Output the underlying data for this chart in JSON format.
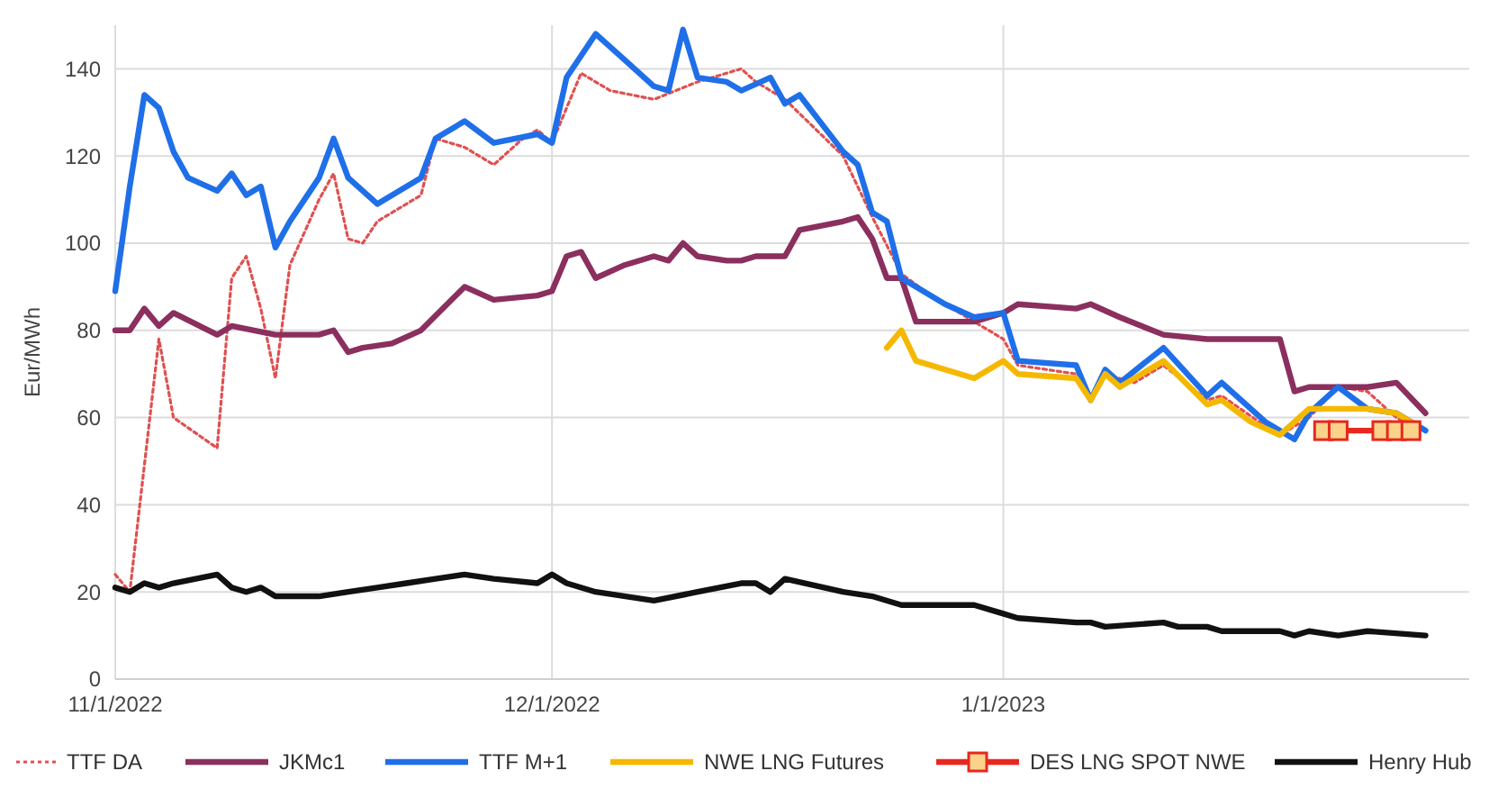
{
  "chart_data": {
    "type": "line",
    "ylabel": "Eur/MWh",
    "ylim": [
      0,
      150
    ],
    "yticks": [
      0,
      20,
      40,
      60,
      80,
      100,
      120,
      140
    ],
    "xlim": [
      "2022-11-01",
      "2023-02-02"
    ],
    "xticks": [
      {
        "value": "2022-11-01",
        "label": "11/1/2022"
      },
      {
        "value": "2022-12-01",
        "label": "12/1/2022"
      },
      {
        "value": "2023-01-01",
        "label": "1/1/2023"
      }
    ],
    "grid": true,
    "legend": "bottom",
    "marker": "none",
    "series": [
      {
        "name": "TTF DA",
        "color": "#e05050",
        "line_style": "dotted",
        "x": [
          "2022-11-01",
          "2022-11-02",
          "2022-11-04",
          "2022-11-05",
          "2022-11-08",
          "2022-11-09",
          "2022-11-10",
          "2022-11-11",
          "2022-11-12",
          "2022-11-13",
          "2022-11-15",
          "2022-11-16",
          "2022-11-17",
          "2022-11-18",
          "2022-11-19",
          "2022-11-22",
          "2022-11-23",
          "2022-11-25",
          "2022-11-27",
          "2022-11-29",
          "2022-11-30",
          "2022-12-01",
          "2022-12-03",
          "2022-12-05",
          "2022-12-08",
          "2022-12-11",
          "2022-12-12",
          "2022-12-14",
          "2022-12-15",
          "2022-12-17",
          "2022-12-21",
          "2022-12-23",
          "2022-12-25",
          "2022-12-27",
          "2022-12-30",
          "2023-01-01",
          "2023-01-02",
          "2023-01-06",
          "2023-01-07",
          "2023-01-08",
          "2023-01-10",
          "2023-01-12",
          "2023-01-15",
          "2023-01-16",
          "2023-01-19",
          "2023-01-20",
          "2023-01-22",
          "2023-01-24",
          "2023-01-26",
          "2023-01-28",
          "2023-01-29"
        ],
        "values": [
          24,
          20,
          78,
          60,
          53,
          92,
          97,
          85,
          69,
          95,
          110,
          116,
          101,
          100,
          105,
          111,
          124,
          122,
          118,
          124,
          126,
          123,
          139,
          135,
          133,
          137,
          138,
          140,
          137,
          133,
          120,
          106,
          93,
          88,
          82,
          78,
          72,
          70,
          65,
          70,
          68,
          72,
          64,
          65,
          58,
          56,
          60,
          67,
          66,
          60,
          58
        ]
      },
      {
        "name": "JKMc1",
        "color": "#8b2f5e",
        "line_style": "solid",
        "x": [
          "2022-11-01",
          "2022-11-02",
          "2022-11-03",
          "2022-11-04",
          "2022-11-05",
          "2022-11-08",
          "2022-11-09",
          "2022-11-12",
          "2022-11-15",
          "2022-11-16",
          "2022-11-17",
          "2022-11-18",
          "2022-11-20",
          "2022-11-22",
          "2022-11-25",
          "2022-11-27",
          "2022-11-30",
          "2022-12-01",
          "2022-12-02",
          "2022-12-03",
          "2022-12-04",
          "2022-12-06",
          "2022-12-08",
          "2022-12-09",
          "2022-12-10",
          "2022-12-11",
          "2022-12-13",
          "2022-12-14",
          "2022-12-15",
          "2022-12-17",
          "2022-12-18",
          "2022-12-21",
          "2022-12-22",
          "2022-12-23",
          "2022-12-24",
          "2022-12-25",
          "2022-12-26",
          "2022-12-30",
          "2023-01-01",
          "2023-01-02",
          "2023-01-06",
          "2023-01-07",
          "2023-01-09",
          "2023-01-12",
          "2023-01-15",
          "2023-01-20",
          "2023-01-21",
          "2023-01-22",
          "2023-01-24",
          "2023-01-26",
          "2023-01-28",
          "2023-01-30"
        ],
        "values": [
          80,
          80,
          85,
          81,
          84,
          79,
          81,
          79,
          79,
          80,
          75,
          76,
          77,
          80,
          90,
          87,
          88,
          89,
          97,
          98,
          92,
          95,
          97,
          96,
          100,
          97,
          96,
          96,
          97,
          97,
          103,
          105,
          106,
          101,
          92,
          92,
          82,
          82,
          84,
          86,
          85,
          86,
          83,
          79,
          78,
          78,
          66,
          67,
          67,
          67,
          68,
          61
        ]
      },
      {
        "name": "TTF M+1",
        "color": "#1f6fe8",
        "line_style": "solid",
        "x": [
          "2022-11-01",
          "2022-11-02",
          "2022-11-03",
          "2022-11-04",
          "2022-11-05",
          "2022-11-06",
          "2022-11-08",
          "2022-11-09",
          "2022-11-10",
          "2022-11-11",
          "2022-11-12",
          "2022-11-13",
          "2022-11-15",
          "2022-11-16",
          "2022-11-17",
          "2022-11-19",
          "2022-11-22",
          "2022-11-23",
          "2022-11-25",
          "2022-11-27",
          "2022-11-30",
          "2022-12-01",
          "2022-12-02",
          "2022-12-04",
          "2022-12-06",
          "2022-12-08",
          "2022-12-09",
          "2022-12-10",
          "2022-12-11",
          "2022-12-13",
          "2022-12-14",
          "2022-12-16",
          "2022-12-17",
          "2022-12-18",
          "2022-12-21",
          "2022-12-22",
          "2022-12-23",
          "2022-12-24",
          "2022-12-25",
          "2022-12-28",
          "2022-12-30",
          "2023-01-01",
          "2023-01-02",
          "2023-01-06",
          "2023-01-07",
          "2023-01-08",
          "2023-01-09",
          "2023-01-12",
          "2023-01-15",
          "2023-01-16",
          "2023-01-19",
          "2023-01-21",
          "2023-01-22",
          "2023-01-24",
          "2023-01-26",
          "2023-01-28",
          "2023-01-30"
        ],
        "values": [
          89,
          113,
          134,
          131,
          121,
          115,
          112,
          116,
          111,
          113,
          99,
          105,
          115,
          124,
          115,
          109,
          115,
          124,
          128,
          123,
          125,
          123,
          138,
          148,
          142,
          136,
          135,
          149,
          138,
          137,
          135,
          138,
          132,
          134,
          121,
          118,
          107,
          105,
          92,
          86,
          83,
          84,
          73,
          72,
          64,
          71,
          68,
          76,
          65,
          68,
          59,
          55,
          61,
          67,
          62,
          61,
          57
        ]
      },
      {
        "name": "NWE LNG Futures",
        "color": "#f5b800",
        "line_style": "solid",
        "x": [
          "2022-12-24",
          "2022-12-25",
          "2022-12-26",
          "2022-12-30",
          "2023-01-01",
          "2023-01-02",
          "2023-01-06",
          "2023-01-07",
          "2023-01-08",
          "2023-01-09",
          "2023-01-12",
          "2023-01-15",
          "2023-01-16",
          "2023-01-18",
          "2023-01-20",
          "2023-01-22",
          "2023-01-24",
          "2023-01-26",
          "2023-01-28",
          "2023-01-29"
        ],
        "values": [
          76,
          80,
          73,
          69,
          73,
          70,
          69,
          64,
          70,
          67,
          73,
          63,
          64,
          59,
          56,
          62,
          62,
          62,
          61,
          59
        ]
      },
      {
        "name": "DES LNG SPOT NWE",
        "color": "#e8281e",
        "line_style": "solid",
        "marker": "square",
        "x": [
          "2023-01-23",
          "2023-01-24",
          "2023-01-27",
          "2023-01-28",
          "2023-01-29"
        ],
        "values": [
          57,
          57,
          57,
          57,
          57
        ]
      },
      {
        "name": "Henry Hub",
        "color": "#111111",
        "line_style": "solid",
        "x": [
          "2022-11-01",
          "2022-11-02",
          "2022-11-03",
          "2022-11-04",
          "2022-11-05",
          "2022-11-08",
          "2022-11-09",
          "2022-11-10",
          "2022-11-11",
          "2022-11-12",
          "2022-11-15",
          "2022-11-17",
          "2022-11-19",
          "2022-11-21",
          "2022-11-23",
          "2022-11-25",
          "2022-11-27",
          "2022-11-30",
          "2022-12-01",
          "2022-12-02",
          "2022-12-04",
          "2022-12-08",
          "2022-12-11",
          "2022-12-14",
          "2022-12-15",
          "2022-12-16",
          "2022-12-17",
          "2022-12-21",
          "2022-12-23",
          "2022-12-25",
          "2022-12-26",
          "2022-12-30",
          "2023-01-01",
          "2023-01-02",
          "2023-01-06",
          "2023-01-07",
          "2023-01-08",
          "2023-01-12",
          "2023-01-13",
          "2023-01-15",
          "2023-01-16",
          "2023-01-20",
          "2023-01-21",
          "2023-01-22",
          "2023-01-24",
          "2023-01-26",
          "2023-01-30"
        ],
        "values": [
          21,
          20,
          22,
          21,
          22,
          24,
          21,
          20,
          21,
          19,
          19,
          20,
          21,
          22,
          23,
          24,
          23,
          22,
          24,
          22,
          20,
          18,
          20,
          22,
          22,
          20,
          23,
          20,
          19,
          17,
          17,
          17,
          15,
          14,
          13,
          13,
          12,
          13,
          12,
          12,
          11,
          11,
          10,
          11,
          10,
          11,
          10
        ]
      }
    ]
  }
}
